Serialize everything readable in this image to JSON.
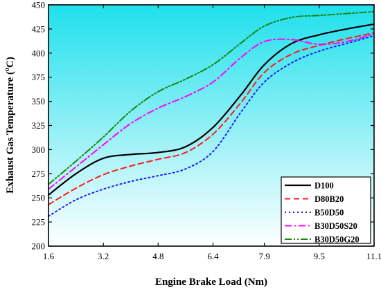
{
  "chart_data": {
    "type": "line",
    "xlabel": "Engine Brake Load (Nm)",
    "ylabel_main": "Exhaust Gas Temperature (",
    "ylabel_sup": "o",
    "ylabel_end": "C)",
    "x_ticks": [
      "1.6",
      "3.2",
      "4.8",
      "6.4",
      "7.9",
      "9.5",
      "11.1"
    ],
    "x_tick_values": [
      1.6,
      3.2,
      4.8,
      6.4,
      7.9,
      9.5,
      11.1
    ],
    "y_ticks": [
      "200",
      "225",
      "250",
      "275",
      "300",
      "325",
      "350",
      "375",
      "400",
      "425",
      "450"
    ],
    "ylim": [
      200,
      450
    ],
    "xlim": [
      1.6,
      11.1
    ],
    "background_gradient": [
      "#1fe0ec",
      "#ffffff"
    ],
    "legend_position": "bottom-right",
    "series": [
      {
        "name": "D100",
        "color": "#000000",
        "dash": "solid",
        "x": [
          1.6,
          2.4,
          3.2,
          4.0,
          4.8,
          5.6,
          6.4,
          7.2,
          7.9,
          8.7,
          9.5,
          10.3,
          11.1
        ],
        "values": [
          253,
          275,
          291,
          295,
          297,
          303,
          323,
          356,
          388,
          410,
          419,
          425,
          430
        ]
      },
      {
        "name": "D80B20",
        "color": "#ff1a1a",
        "dash": "dashed",
        "x": [
          1.6,
          2.4,
          3.2,
          4.0,
          4.8,
          5.6,
          6.4,
          7.2,
          7.9,
          8.7,
          9.5,
          10.3,
          11.1
        ],
        "values": [
          243,
          260,
          274,
          283,
          290,
          297,
          316,
          348,
          380,
          399,
          408,
          415,
          421
        ]
      },
      {
        "name": "B50D50",
        "color": "#1a1aff",
        "dash": "dotted",
        "x": [
          1.6,
          2.4,
          3.2,
          4.0,
          4.8,
          5.6,
          6.4,
          7.2,
          7.9,
          8.7,
          9.5,
          10.3,
          11.1
        ],
        "values": [
          231,
          248,
          259,
          267,
          273,
          280,
          298,
          338,
          370,
          390,
          402,
          410,
          418
        ]
      },
      {
        "name": "B30D50S20",
        "color": "#ff00ff",
        "dash": "dashdot",
        "x": [
          1.6,
          2.4,
          3.2,
          4.0,
          4.8,
          5.6,
          6.4,
          7.2,
          7.9,
          8.7,
          9.5,
          10.3,
          11.1
        ],
        "values": [
          259,
          282,
          305,
          327,
          343,
          355,
          370,
          395,
          412,
          414,
          409,
          412,
          420
        ]
      },
      {
        "name": "B30D50G20",
        "color": "#118811",
        "dash": "dashdotdot",
        "x": [
          1.6,
          2.4,
          3.2,
          4.0,
          4.8,
          5.6,
          6.4,
          7.2,
          7.9,
          8.7,
          9.5,
          10.3,
          11.1
        ],
        "values": [
          264,
          288,
          313,
          340,
          360,
          373,
          388,
          410,
          428,
          437,
          439,
          441,
          443
        ]
      }
    ]
  }
}
